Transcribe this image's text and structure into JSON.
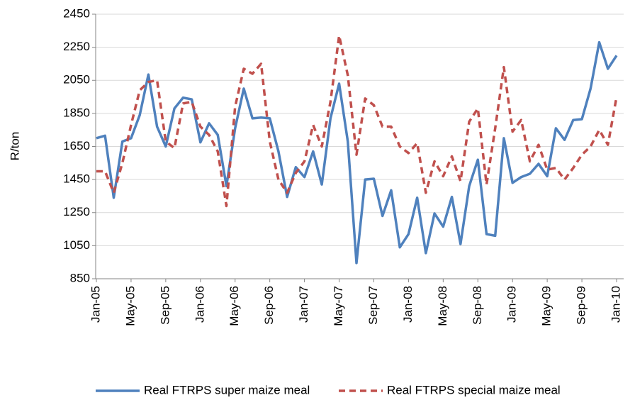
{
  "chart_data": {
    "type": "line",
    "y_label": "R/ton",
    "categories": [
      "Jan-05",
      null,
      null,
      null,
      "May-05",
      null,
      null,
      null,
      "Sep-05",
      null,
      null,
      null,
      "Jan-06",
      null,
      null,
      null,
      "May-06",
      null,
      null,
      null,
      "Sep-06",
      null,
      null,
      null,
      "Jan-07",
      null,
      null,
      null,
      "May-07",
      null,
      null,
      null,
      "Sep-07",
      null,
      null,
      null,
      "Jan-08",
      null,
      null,
      null,
      "May-08",
      null,
      null,
      null,
      "Sep-08",
      null,
      null,
      null,
      "Jan-09",
      null,
      null,
      null,
      "May-09",
      null,
      null,
      null,
      "Sep-09",
      null,
      null,
      null,
      "Jan-10"
    ],
    "series": [
      {
        "name": "Real FTRPS super maize meal",
        "color": "#4f81bd",
        "dash": false,
        "values": [
          1700,
          1715,
          1340,
          1680,
          1700,
          1840,
          2085,
          1770,
          1650,
          1880,
          1945,
          1935,
          1675,
          1790,
          1720,
          1410,
          1760,
          2000,
          1820,
          1825,
          1820,
          1620,
          1345,
          1525,
          1465,
          1620,
          1420,
          1820,
          2030,
          1680,
          945,
          1450,
          1455,
          1230,
          1385,
          1040,
          1120,
          1340,
          1005,
          1245,
          1165,
          1345,
          1060,
          1410,
          1570,
          1120,
          1110,
          1700,
          1430,
          1465,
          1485,
          1545,
          1470,
          1760,
          1690,
          1810,
          1815,
          2000,
          2280,
          2120,
          2200
        ]
      },
      {
        "name": "Real FTRPS special maize meal",
        "color": "#c0504d",
        "dash": true,
        "values": [
          1500,
          1500,
          1370,
          1550,
          1780,
          1990,
          2040,
          2050,
          1680,
          1640,
          1910,
          1920,
          1770,
          1720,
          1620,
          1290,
          1890,
          2120,
          2090,
          2150,
          1680,
          1450,
          1370,
          1490,
          1560,
          1780,
          1650,
          1920,
          2320,
          2080,
          1600,
          1940,
          1900,
          1770,
          1770,
          1650,
          1610,
          1670,
          1370,
          1560,
          1470,
          1590,
          1440,
          1800,
          1880,
          1420,
          1760,
          2130,
          1740,
          1810,
          1560,
          1660,
          1510,
          1520,
          1450,
          1520,
          1600,
          1650,
          1750,
          1660,
          1950
        ]
      }
    ],
    "ylim": [
      850,
      2450
    ],
    "yticks": [
      850,
      1050,
      1250,
      1450,
      1650,
      1850,
      2050,
      2250,
      2450
    ],
    "grid": true
  }
}
